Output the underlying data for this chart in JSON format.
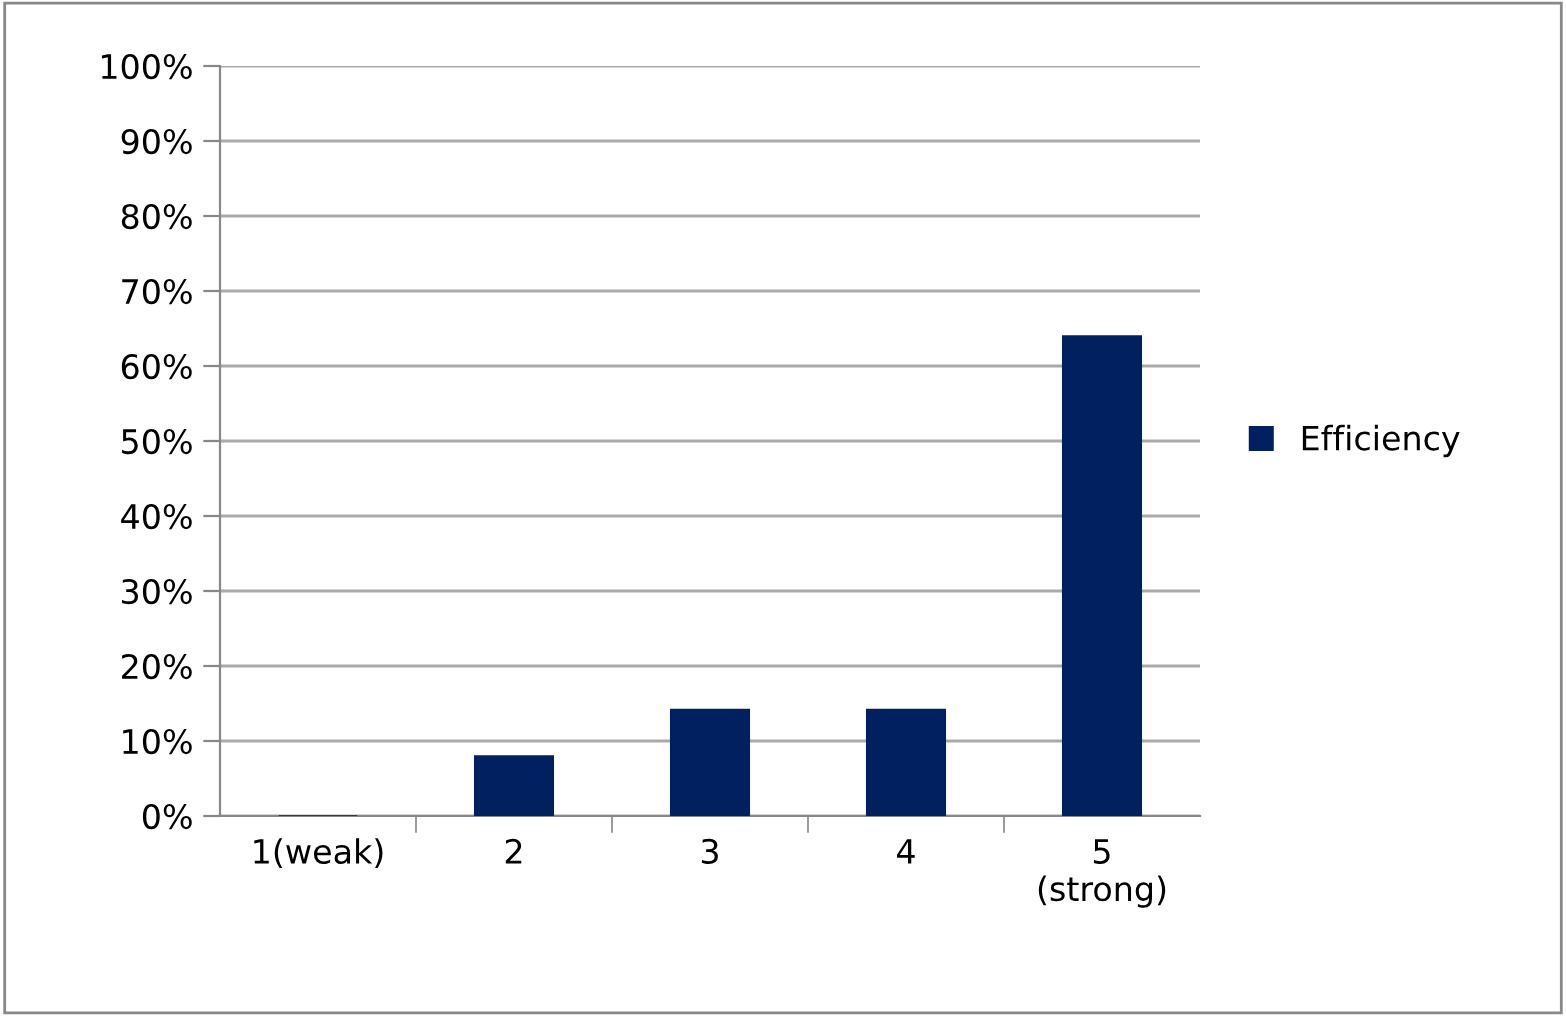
{
  "chart_data": {
    "type": "bar",
    "categories": [
      "1(weak)",
      "2",
      "3",
      "4",
      "5\n(strong)"
    ],
    "series": [
      {
        "name": "Efficiency",
        "color": "#002060",
        "values": [
          0,
          8,
          14.2,
          14.2,
          64
        ]
      }
    ],
    "ylim": [
      0,
      100
    ],
    "yticks": [
      {
        "value": 0,
        "label": "0%"
      },
      {
        "value": 10,
        "label": "10%"
      },
      {
        "value": 20,
        "label": "20%"
      },
      {
        "value": 30,
        "label": "30%"
      },
      {
        "value": 40,
        "label": "40%"
      },
      {
        "value": 50,
        "label": "50%"
      },
      {
        "value": 60,
        "label": "60%"
      },
      {
        "value": 70,
        "label": "70%"
      },
      {
        "value": 80,
        "label": "80%"
      },
      {
        "value": 90,
        "label": "90%"
      },
      {
        "value": 100,
        "label": "100%"
      }
    ],
    "grid": "y",
    "legend": "right"
  }
}
